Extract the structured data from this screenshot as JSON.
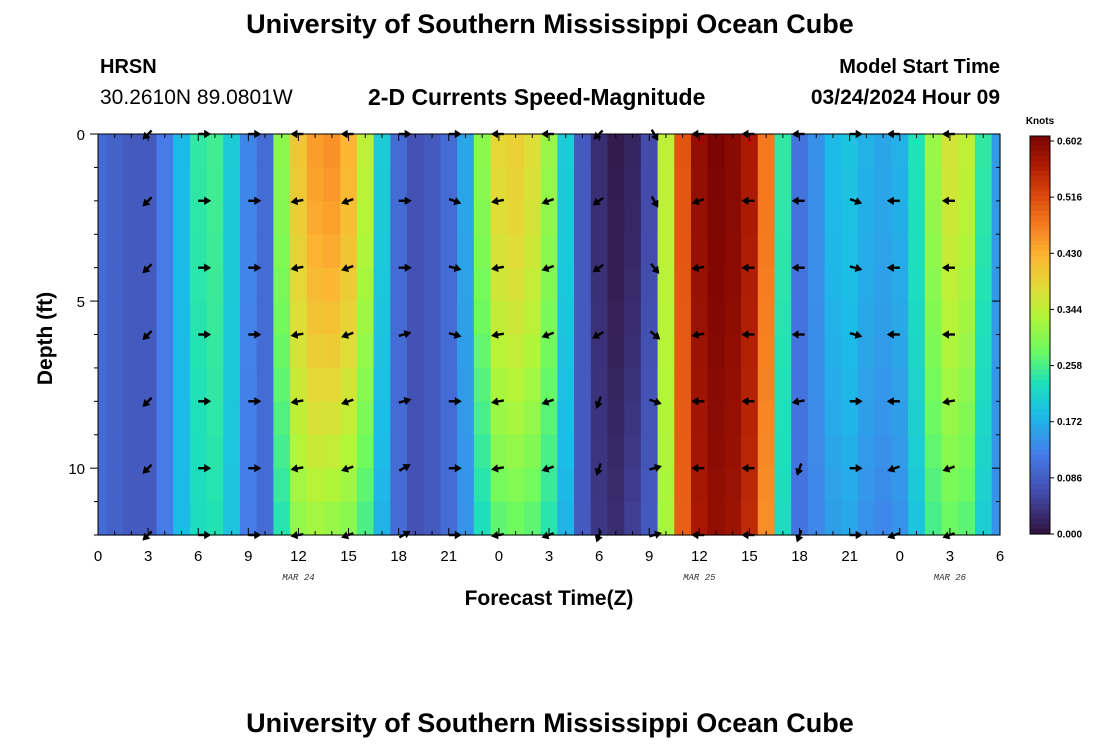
{
  "header": {
    "title": "University of Southern Mississippi Ocean Cube",
    "station": "HRSN",
    "coords": "30.2610N  89.0801W",
    "subtitle": "2-D Currents Speed-Magnitude",
    "model_start_label": "Model Start Time",
    "model_start_value": "03/24/2024 Hour 09"
  },
  "footer": {
    "title": "University of Southern Mississippi Ocean Cube"
  },
  "chart_data": {
    "type": "heatmap",
    "title": "2-D Currents Speed-Magnitude",
    "xlabel": "Forecast Time(Z)",
    "ylabel": "Depth (ft)",
    "x_range_hours": [
      0,
      54
    ],
    "x_ticks": [
      {
        "h": 0,
        "label": "0"
      },
      {
        "h": 3,
        "label": "3"
      },
      {
        "h": 6,
        "label": "6"
      },
      {
        "h": 9,
        "label": "9"
      },
      {
        "h": 12,
        "label": "12"
      },
      {
        "h": 15,
        "label": "15"
      },
      {
        "h": 18,
        "label": "18"
      },
      {
        "h": 21,
        "label": "21"
      },
      {
        "h": 24,
        "label": "0"
      },
      {
        "h": 27,
        "label": "3"
      },
      {
        "h": 30,
        "label": "6"
      },
      {
        "h": 33,
        "label": "9"
      },
      {
        "h": 36,
        "label": "12"
      },
      {
        "h": 39,
        "label": "15"
      },
      {
        "h": 42,
        "label": "18"
      },
      {
        "h": 45,
        "label": "21"
      },
      {
        "h": 48,
        "label": "0"
      },
      {
        "h": 51,
        "label": "3"
      },
      {
        "h": 54,
        "label": "6"
      }
    ],
    "date_labels": [
      {
        "h": 12,
        "label": "MAR 24"
      },
      {
        "h": 36,
        "label": "MAR 25"
      },
      {
        "h": 51,
        "label": "MAR 26"
      }
    ],
    "y_range_ft": [
      0,
      12
    ],
    "y_ticks": [
      {
        "d": 0,
        "label": "0"
      },
      {
        "d": 5,
        "label": "5"
      },
      {
        "d": 10,
        "label": "10"
      }
    ],
    "colorbar": {
      "unit": "Knots",
      "min": 0.0,
      "max": 0.602,
      "ticks": [
        "0.602",
        "0.516",
        "0.430",
        "0.344",
        "0.258",
        "0.172",
        "0.086",
        "0.000"
      ]
    },
    "speed_profile": {
      "hours": [
        0,
        1,
        2,
        3,
        4,
        5,
        6,
        7,
        8,
        9,
        10,
        11,
        12,
        13,
        14,
        15,
        16,
        17,
        18,
        19,
        20,
        21,
        22,
        23,
        24,
        25,
        26,
        27,
        28,
        29,
        30,
        31,
        32,
        33,
        34,
        35,
        36,
        37,
        38,
        39,
        40,
        41,
        42,
        43,
        44,
        45,
        46,
        47,
        48,
        49,
        50,
        51,
        52,
        53,
        54
      ],
      "surface_knots": [
        0.1,
        0.09,
        0.08,
        0.08,
        0.12,
        0.18,
        0.24,
        0.25,
        0.2,
        0.13,
        0.1,
        0.3,
        0.4,
        0.44,
        0.45,
        0.42,
        0.34,
        0.2,
        0.1,
        0.07,
        0.08,
        0.1,
        0.16,
        0.3,
        0.38,
        0.39,
        0.37,
        0.31,
        0.2,
        0.08,
        0.03,
        0.01,
        0.02,
        0.06,
        0.34,
        0.5,
        0.58,
        0.6,
        0.59,
        0.56,
        0.47,
        0.24,
        0.11,
        0.14,
        0.18,
        0.19,
        0.17,
        0.16,
        0.17,
        0.23,
        0.31,
        0.36,
        0.34,
        0.24,
        0.15
      ],
      "bottom_knots": [
        0.1,
        0.09,
        0.08,
        0.08,
        0.12,
        0.18,
        0.22,
        0.23,
        0.19,
        0.12,
        0.1,
        0.23,
        0.3,
        0.31,
        0.3,
        0.29,
        0.25,
        0.17,
        0.1,
        0.07,
        0.08,
        0.1,
        0.14,
        0.22,
        0.26,
        0.27,
        0.26,
        0.23,
        0.17,
        0.08,
        0.04,
        0.03,
        0.05,
        0.08,
        0.32,
        0.49,
        0.56,
        0.58,
        0.57,
        0.54,
        0.45,
        0.22,
        0.11,
        0.13,
        0.15,
        0.16,
        0.14,
        0.13,
        0.14,
        0.19,
        0.25,
        0.27,
        0.26,
        0.2,
        0.14
      ]
    },
    "vectors": {
      "hours": [
        3,
        6.3,
        9.3,
        12,
        15,
        18.3,
        21.3,
        24,
        27,
        30,
        33.3,
        36,
        39,
        42,
        45.3,
        47.7,
        51
      ],
      "depths_ft": [
        0,
        2,
        4,
        6,
        8,
        10,
        12
      ],
      "angles_deg": [
        [
          225,
          0,
          0,
          180,
          180,
          0,
          0,
          180,
          180,
          225,
          300,
          180,
          180,
          180,
          0,
          180,
          180
        ],
        [
          225,
          0,
          0,
          190,
          200,
          0,
          340,
          190,
          200,
          215,
          300,
          200,
          180,
          180,
          340,
          180,
          180
        ],
        [
          225,
          0,
          0,
          190,
          200,
          0,
          345,
          190,
          200,
          215,
          310,
          190,
          180,
          180,
          345,
          180,
          180
        ],
        [
          225,
          0,
          0,
          190,
          200,
          15,
          345,
          190,
          200,
          210,
          320,
          190,
          180,
          180,
          345,
          180,
          180
        ],
        [
          225,
          0,
          0,
          190,
          200,
          15,
          0,
          190,
          200,
          250,
          340,
          180,
          180,
          190,
          0,
          180,
          190
        ],
        [
          225,
          0,
          0,
          190,
          200,
          30,
          0,
          190,
          200,
          250,
          15,
          180,
          180,
          250,
          0,
          200,
          200
        ],
        [
          225,
          0,
          0,
          190,
          200,
          30,
          0,
          190,
          200,
          250,
          15,
          180,
          180,
          250,
          0,
          200,
          200
        ]
      ]
    }
  }
}
